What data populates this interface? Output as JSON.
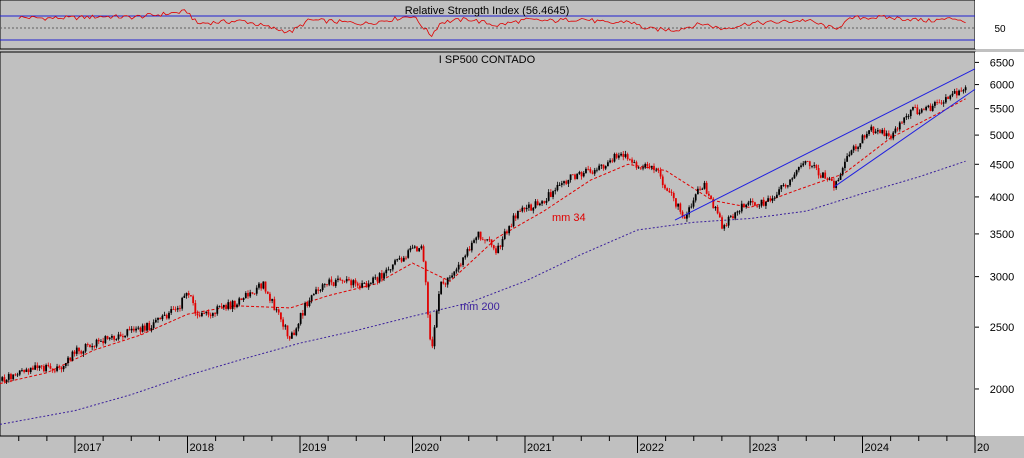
{
  "colors": {
    "background": "#c0c0c0",
    "axis_panel": "#ffffff",
    "rsi_line": "#e00000",
    "band_line": "#2020d0",
    "candle_up": "#000000",
    "candle_down": "#e00000",
    "mm34": "#e00000",
    "mm200": "#3a1f9c",
    "channel": "#2020e0"
  },
  "chart_data": [
    {
      "type": "line",
      "title": "Relative Strength Index (56.4645)",
      "series": [
        {
          "name": "Relative Strength Index",
          "x": [
            "2016-07",
            "2016-10",
            "2017-01",
            "2017-04",
            "2017-07",
            "2017-10",
            "2018-01",
            "2018-02",
            "2018-04",
            "2018-07",
            "2018-10",
            "2018-12",
            "2019-02",
            "2019-05",
            "2019-08",
            "2019-11",
            "2020-01",
            "2020-03",
            "2020-04",
            "2020-07",
            "2020-10",
            "2021-01",
            "2021-04",
            "2021-07",
            "2021-10",
            "2021-12",
            "2022-02",
            "2022-05",
            "2022-08",
            "2022-10",
            "2023-01",
            "2023-04",
            "2023-07",
            "2023-10",
            "2023-12",
            "2024-03",
            "2024-06",
            "2024-08",
            "2024-11",
            "2024-12"
          ],
          "values": [
            66,
            64,
            65,
            68,
            66,
            72,
            79,
            52,
            55,
            58,
            42,
            33,
            60,
            56,
            52,
            62,
            70,
            25,
            55,
            62,
            48,
            60,
            58,
            63,
            52,
            58,
            40,
            38,
            52,
            40,
            53,
            55,
            60,
            40,
            65,
            66,
            62,
            58,
            64,
            56
          ]
        }
      ],
      "y_tick_labels": [
        "50"
      ],
      "reference_lines": [
        70,
        30
      ]
    },
    {
      "type": "candlestick",
      "title": "I SP500 CONTADO",
      "y_scale": "log",
      "ylim": [
        1700,
        6700
      ],
      "y_ticks": [
        2000,
        2500,
        3000,
        3500,
        4000,
        4500,
        5000,
        5500,
        6000,
        6500
      ],
      "x_tick_labels": [
        "2017",
        "2018",
        "2019",
        "2020",
        "2021",
        "2022",
        "2023",
        "2024",
        "20"
      ],
      "x_range": [
        "2016-05",
        "2025-01"
      ],
      "price": {
        "x": [
          "2016-05",
          "2016-09",
          "2016-11",
          "2017-01",
          "2017-03",
          "2017-06",
          "2017-09",
          "2017-12",
          "2018-01",
          "2018-02",
          "2018-04",
          "2018-06",
          "2018-09",
          "2018-10",
          "2018-12",
          "2019-02",
          "2019-04",
          "2019-06",
          "2019-08",
          "2019-10",
          "2019-12",
          "2020-02",
          "2020-03",
          "2020-04",
          "2020-06",
          "2020-08",
          "2020-10",
          "2020-12",
          "2021-03",
          "2021-06",
          "2021-09",
          "2021-11",
          "2022-01",
          "2022-03",
          "2022-06",
          "2022-08",
          "2022-10",
          "2022-12",
          "2023-03",
          "2023-05",
          "2023-07",
          "2023-10",
          "2023-12",
          "2024-02",
          "2024-04",
          "2024-06",
          "2024-08",
          "2024-10",
          "2024-12"
        ],
        "values": [
          2060,
          2160,
          2140,
          2280,
          2360,
          2430,
          2510,
          2680,
          2830,
          2620,
          2650,
          2720,
          2920,
          2740,
          2390,
          2780,
          2940,
          2950,
          2900,
          3030,
          3230,
          3370,
          2240,
          2900,
          3100,
          3500,
          3300,
          3750,
          3950,
          4300,
          4450,
          4700,
          4500,
          4400,
          3700,
          4200,
          3600,
          3850,
          3950,
          4200,
          4550,
          4150,
          4770,
          5100,
          5000,
          5450,
          5500,
          5750,
          5950
        ]
      },
      "moving_averages": [
        {
          "name": "mm 34",
          "x": [
            "2016-05",
            "2016-10",
            "2017-03",
            "2017-08",
            "2018-01",
            "2018-06",
            "2018-12",
            "2019-04",
            "2019-09",
            "2020-01",
            "2020-05",
            "2020-10",
            "2021-03",
            "2021-08",
            "2021-12",
            "2022-04",
            "2022-09",
            "2023-01",
            "2023-06",
            "2023-11",
            "2024-04",
            "2024-09",
            "2024-12"
          ],
          "values": [
            2040,
            2120,
            2300,
            2430,
            2620,
            2700,
            2680,
            2800,
            2920,
            3150,
            2950,
            3450,
            3800,
            4250,
            4500,
            4400,
            3950,
            3850,
            4100,
            4350,
            4950,
            5400,
            5700
          ]
        },
        {
          "name": "mm 200",
          "x": [
            "2016-05",
            "2017-01",
            "2017-07",
            "2018-01",
            "2018-07",
            "2019-01",
            "2019-07",
            "2020-01",
            "2020-07",
            "2021-01",
            "2021-07",
            "2022-01",
            "2022-07",
            "2023-01",
            "2023-07",
            "2024-01",
            "2024-07",
            "2024-12"
          ],
          "values": [
            1760,
            1850,
            1960,
            2100,
            2230,
            2360,
            2470,
            2600,
            2730,
            2950,
            3250,
            3550,
            3650,
            3700,
            3800,
            4050,
            4300,
            4550
          ]
        }
      ],
      "trend_channel": [
        {
          "x": [
            "2022-05",
            "2025-01"
          ],
          "values": [
            3680,
            6350
          ]
        },
        {
          "x": [
            "2023-10",
            "2025-01"
          ],
          "values": [
            4150,
            5900
          ]
        }
      ]
    }
  ]
}
